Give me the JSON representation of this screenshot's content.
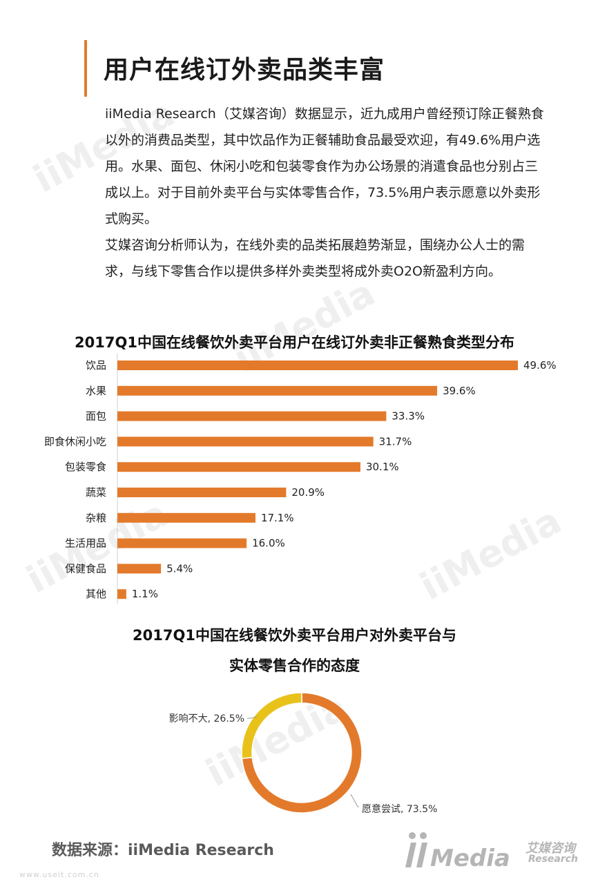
{
  "page": {
    "title": "用户在线订外卖品类丰富",
    "paragraphs": [
      "iiMedia Research（艾媒咨询）数据显示，近九成用户曾经预订除正餐熟食以外的消费品类型，其中饮品作为正餐辅助食品最受欢迎，有49.6%用户选用。水果、面包、休闲小吃和包装零食作为办公场景的消遣食品也分别占三成以上。对于目前外卖平台与实体零售合作，73.5%用户表示愿意以外卖形式购买。",
      "艾媒咨询分析师认为，在线外卖的品类拓展趋势渐显，围绕办公人士的需求，与线下零售合作以提供多样外卖类型将成外卖O2O新盈利方向。"
    ],
    "source": "数据来源：iiMedia Research",
    "site": "www.useit.com.cn",
    "logo": {
      "text": "iiMedia",
      "cn": "艾媒咨询",
      "en": "Research"
    },
    "watermark": {
      "text": "iiMedia",
      "cn": "艾媒咨询",
      "en": "Research"
    }
  },
  "colors": {
    "accent": "#e37a2b",
    "yellow": "#e8c21b",
    "text": "#222222"
  },
  "chart_data": [
    {
      "type": "bar",
      "orientation": "horizontal",
      "title": "2017Q1中国在线餐饮外卖平台用户在线订外卖非正餐熟食类型分布",
      "categories": [
        "饮品",
        "水果",
        "面包",
        "即食休闲小吃",
        "包装零食",
        "蔬菜",
        "杂粮",
        "生活用品",
        "保健食品",
        "其他"
      ],
      "values": [
        49.6,
        39.6,
        33.3,
        31.7,
        30.1,
        20.9,
        17.1,
        16.0,
        5.4,
        1.1
      ],
      "value_labels": [
        "49.6%",
        "39.6%",
        "33.3%",
        "31.7%",
        "30.1%",
        "20.9%",
        "17.1%",
        "16.0%",
        "5.4%",
        "1.1%"
      ],
      "unit": "%",
      "color": "#e37a2b",
      "grid": false
    },
    {
      "type": "pie",
      "style": "donut",
      "title": "2017Q1中国在线餐饮外卖平台用户对外卖平台与实体零售合作的态度",
      "title_lines": [
        "2017Q1中国在线餐饮外卖平台用户对外卖平台与",
        "实体零售合作的态度"
      ],
      "labels": [
        "愿意尝试",
        "影响不大"
      ],
      "values": [
        73.5,
        26.5
      ],
      "value_labels": [
        "愿意尝试, 73.5%",
        "影响不大, 26.5%"
      ],
      "colors": [
        "#e37a2b",
        "#e8c21b"
      ]
    }
  ]
}
